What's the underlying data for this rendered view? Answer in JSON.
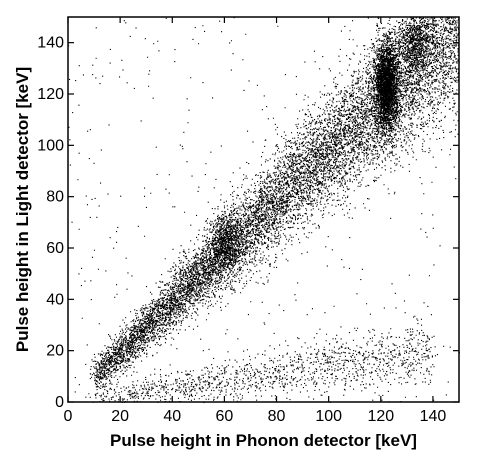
{
  "chart_data": {
    "type": "scatter",
    "title": "",
    "xlabel": "Pulse height in Phonon detector [keV]",
    "ylabel": "Pulse height in Light detector [keV]",
    "xlim": [
      0,
      150
    ],
    "ylim": [
      0,
      150
    ],
    "x_ticks": [
      0,
      20,
      40,
      60,
      80,
      100,
      120,
      140
    ],
    "y_ticks": [
      0,
      20,
      40,
      60,
      80,
      100,
      120,
      140
    ],
    "x_tick_labels": [
      "0",
      "20",
      "40",
      "60",
      "80",
      "100",
      "120",
      "140"
    ],
    "y_tick_labels": [
      "0",
      "20",
      "40",
      "60",
      "80",
      "100",
      "120",
      "140"
    ],
    "grid": false,
    "legend": "none",
    "marker_color": "#000000",
    "bands": [
      {
        "description_role": "upper band",
        "x_range": [
          10,
          150
        ],
        "y_ratio": 0.98,
        "y_spread": 0.09,
        "n_points": 11000
      },
      {
        "description_role": "lower band",
        "x_range": [
          10,
          140
        ],
        "y_ratio": 0.14,
        "y_spread": 0.035,
        "n_points": 1400
      }
    ],
    "clusters": [
      {
        "x": 60,
        "y": 62,
        "sx": 3.0,
        "sy": 6,
        "n_points": 700
      },
      {
        "x": 122,
        "y": 123,
        "sx": 2.2,
        "sy": 9,
        "n_points": 2800
      },
      {
        "x": 133,
        "y": 140,
        "sx": 3.0,
        "sy": 6,
        "n_points": 700
      }
    ],
    "background_points": 400
  }
}
